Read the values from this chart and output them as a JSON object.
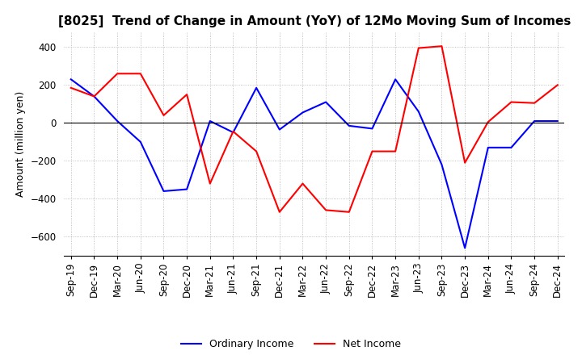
{
  "title": "[8025]  Trend of Change in Amount (YoY) of 12Mo Moving Sum of Incomes",
  "ylabel": "Amount (million yen)",
  "ylim": [
    -700,
    480
  ],
  "yticks": [
    -600,
    -400,
    -200,
    0,
    200,
    400
  ],
  "x_labels": [
    "Sep-19",
    "Dec-19",
    "Mar-20",
    "Jun-20",
    "Sep-20",
    "Dec-20",
    "Mar-21",
    "Jun-21",
    "Sep-21",
    "Dec-21",
    "Mar-22",
    "Jun-22",
    "Sep-22",
    "Dec-22",
    "Mar-23",
    "Jun-23",
    "Sep-23",
    "Dec-23",
    "Mar-24",
    "Jun-24",
    "Sep-24",
    "Dec-24"
  ],
  "ordinary_income": [
    230,
    140,
    10,
    -100,
    -360,
    -350,
    10,
    -50,
    185,
    -35,
    55,
    110,
    -15,
    -30,
    230,
    60,
    -220,
    -660,
    -130,
    -130,
    10,
    10
  ],
  "net_income": [
    185,
    140,
    260,
    260,
    40,
    150,
    -320,
    -45,
    -150,
    -470,
    -320,
    -460,
    -470,
    -150,
    -150,
    395,
    405,
    -210,
    5,
    110,
    105,
    200
  ],
  "ordinary_color": "#0000ff",
  "net_color": "#ff0000",
  "grid_color": "#b0b0b0",
  "grid_style": "dotted",
  "background_color": "#ffffff",
  "title_fontsize": 11,
  "axis_fontsize": 9,
  "tick_fontsize": 8.5
}
